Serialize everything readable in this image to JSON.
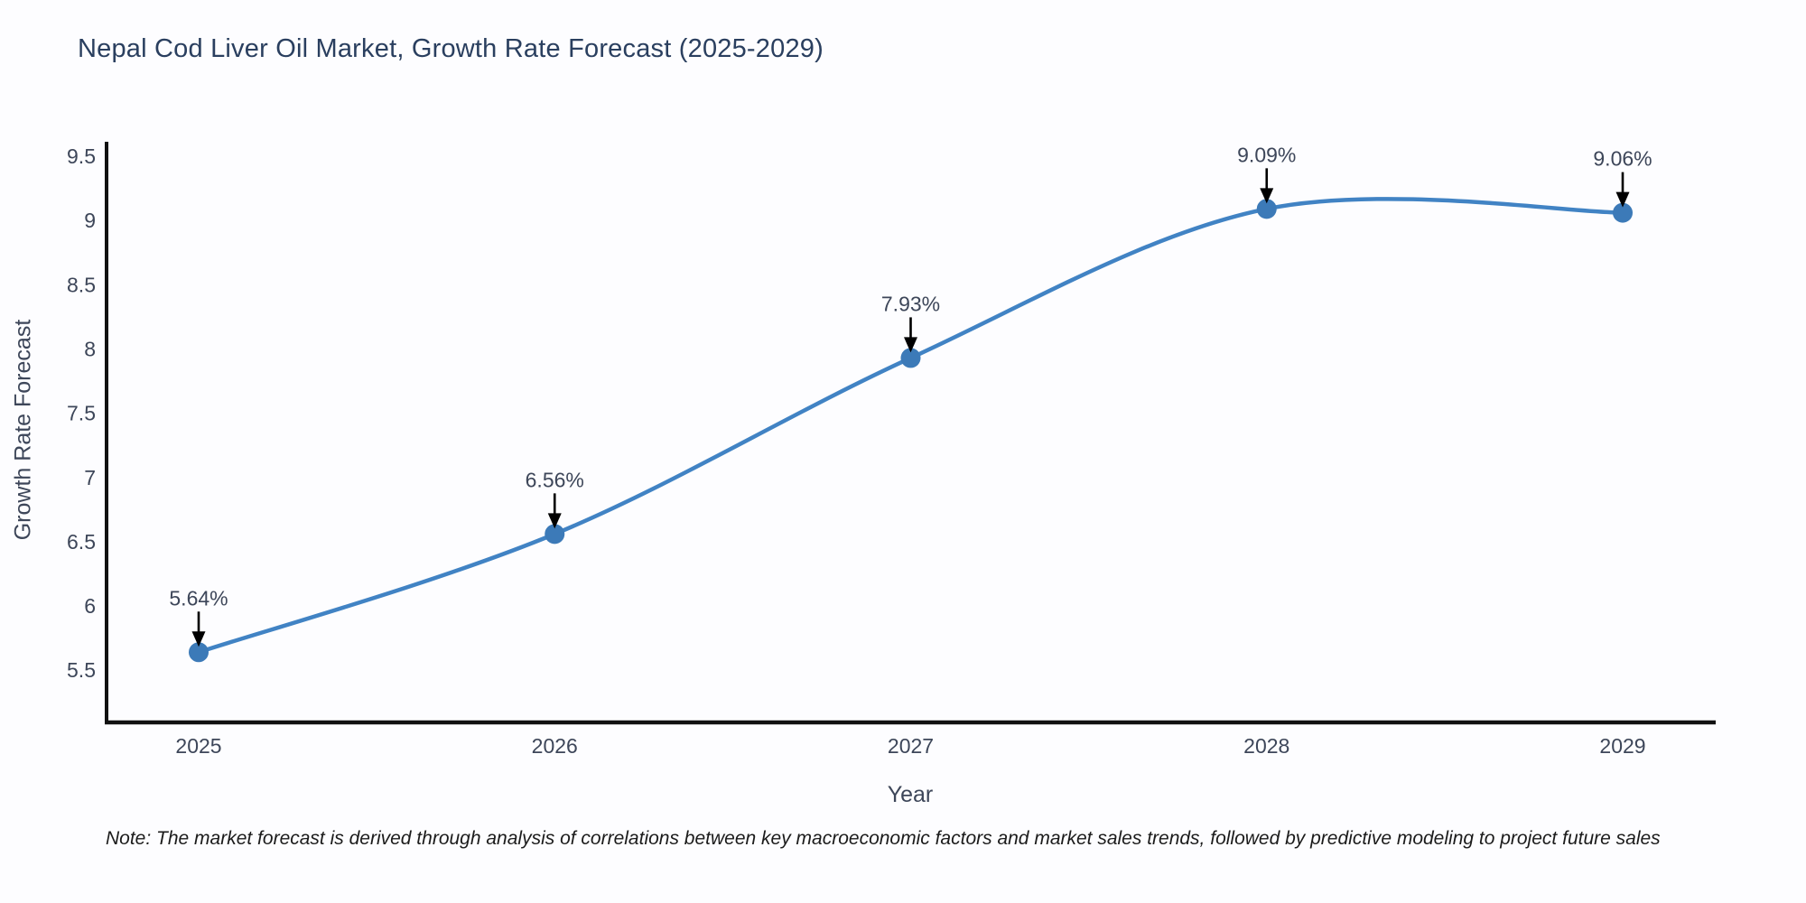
{
  "header": {
    "title": "Nepal Cod Liver Oil Market, Growth Rate Forecast (2025-2029)"
  },
  "chart_data": {
    "type": "line",
    "title": "Nepal Cod Liver Oil Market, Growth Rate Forecast (2025-2029)",
    "xlabel": "Year",
    "ylabel": "Growth Rate Forecast",
    "categories": [
      "2025",
      "2026",
      "2027",
      "2028",
      "2029"
    ],
    "series": [
      {
        "name": "Growth Rate Forecast",
        "values": [
          5.64,
          6.56,
          7.93,
          9.09,
          9.06
        ]
      }
    ],
    "point_labels": [
      "5.64%",
      "6.56%",
      "7.93%",
      "9.09%",
      "9.06%"
    ],
    "y_ticks": [
      5.5,
      6,
      6.5,
      7,
      7.5,
      8,
      8.5,
      9,
      9.5
    ],
    "ylim": [
      5.1,
      9.6
    ],
    "grid": false,
    "legend_position": "none",
    "line_shape": "spline",
    "colors": {
      "line": "#4183c4",
      "marker": "#3c7ab8",
      "axis": "#111111",
      "tick_text": "#3d4659",
      "annotation_text": "#3d4659",
      "annotation_arrow": "#000000",
      "title_text": "#2a3f5f",
      "background": "#fdfdff"
    }
  },
  "footnote": {
    "text": "Note: The market forecast is derived through analysis of correlations between key macroeconomic factors and market sales trends, followed by predictive modeling to project future sales"
  }
}
